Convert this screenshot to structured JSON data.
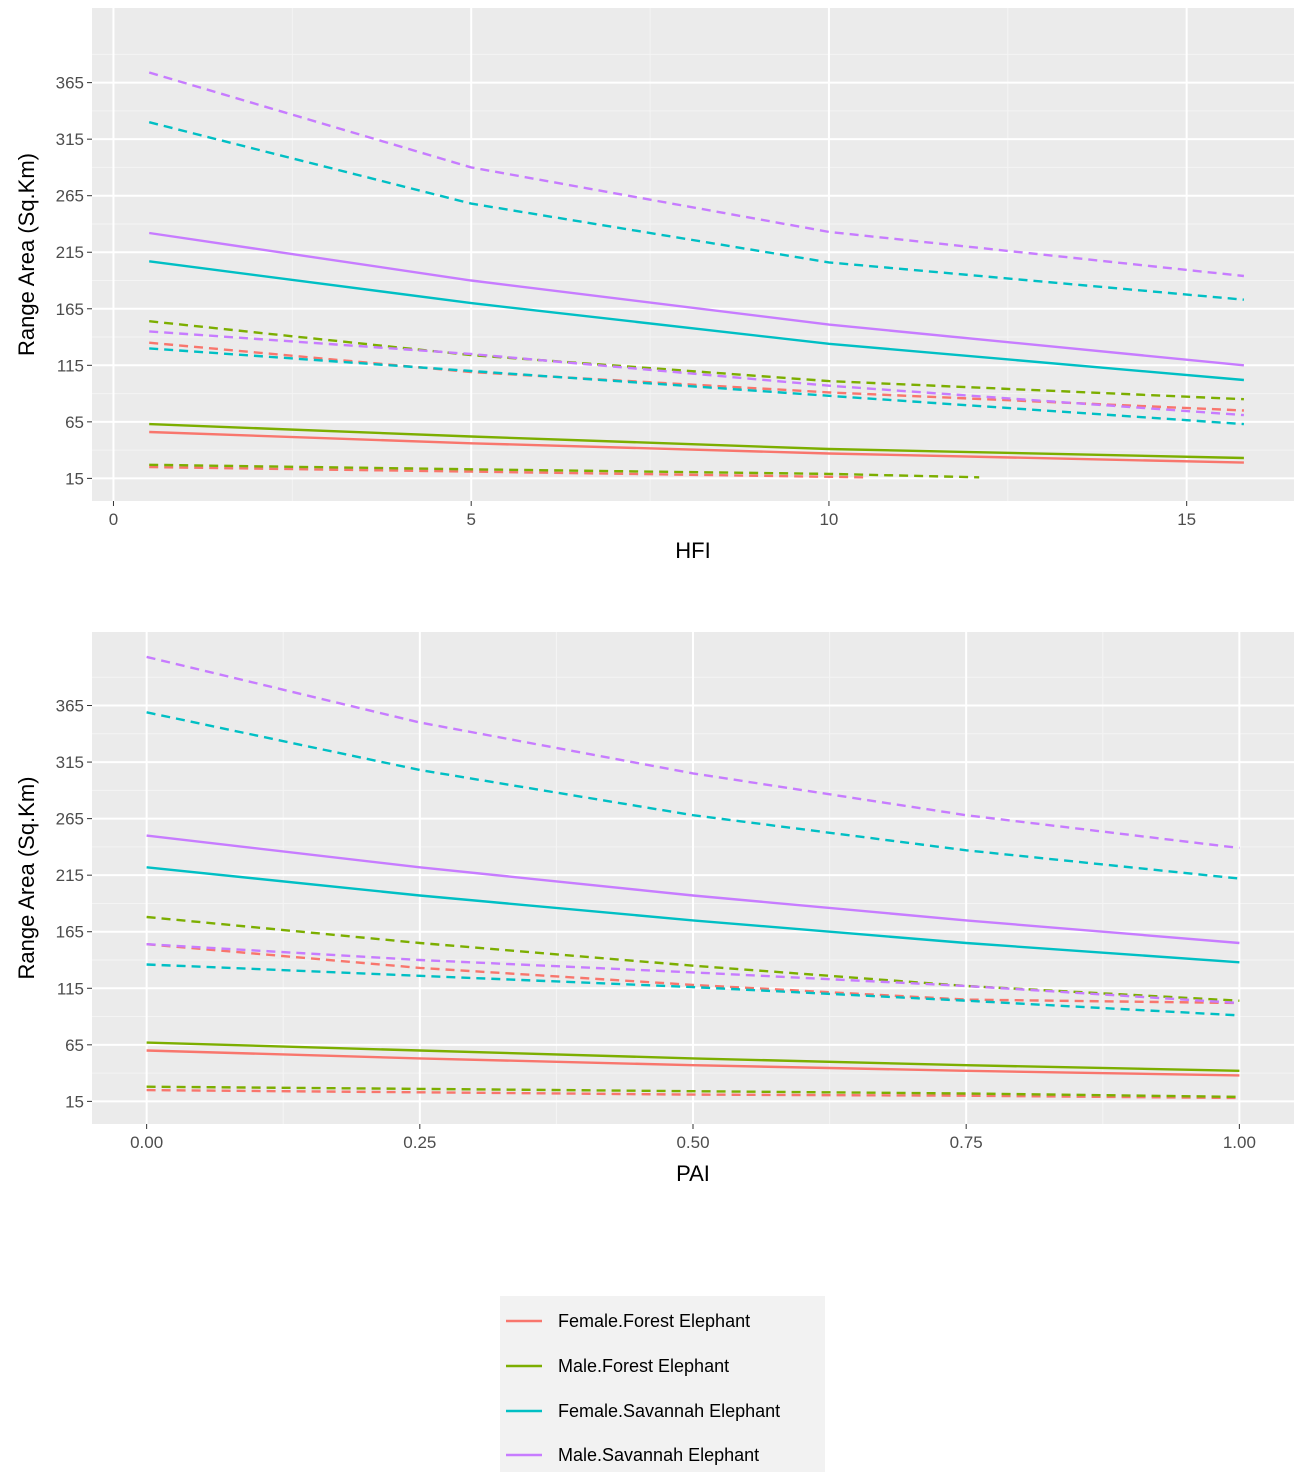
{
  "colors": {
    "panel_bg": "#EBEBEB",
    "grid_major": "#FFFFFF",
    "grid_minor": "#F4F4F4",
    "Female.Forest Elephant": "#F8766D",
    "Male.Forest Elephant": "#7CAE00",
    "Female.Savannah Elephant": "#00BFC4",
    "Male.Savannah Elephant": "#C77CFF"
  },
  "legend": {
    "items": [
      {
        "label": "Female.Forest Elephant",
        "color": "#F8766D"
      },
      {
        "label": "Male.Forest Elephant",
        "color": "#7CAE00"
      },
      {
        "label": "Female.Savannah Elephant",
        "color": "#00BFC4"
      },
      {
        "label": "Male.Savannah Elephant",
        "color": "#C77CFF"
      }
    ]
  },
  "chart_data": [
    {
      "type": "line",
      "xlabel": "HFI",
      "ylabel": "Range Area (Sq.Km)",
      "xlim": [
        -0.3,
        16.5
      ],
      "ylim": [
        -5,
        431
      ],
      "x_ticks": [
        0,
        5,
        10,
        15
      ],
      "x_tick_labels": [
        "0",
        "5",
        "10",
        "15"
      ],
      "y_ticks": [
        15,
        65,
        115,
        165,
        215,
        265,
        315,
        365
      ],
      "y_tick_labels": [
        "15",
        "65",
        "115",
        "165",
        "215",
        "265",
        "315",
        "365"
      ],
      "grid": true,
      "series": [
        {
          "name": "Female.Forest Elephant",
          "line": "solid",
          "x": [
            0.5,
            5,
            10,
            15.8
          ],
          "y": [
            56,
            46,
            37,
            29
          ]
        },
        {
          "name": "Male.Forest Elephant",
          "line": "solid",
          "x": [
            0.5,
            5,
            10,
            15.8
          ],
          "y": [
            63,
            52,
            41,
            33
          ]
        },
        {
          "name": "Female.Savannah Elephant",
          "line": "solid",
          "x": [
            0.5,
            5,
            10,
            15.8
          ],
          "y": [
            207,
            170,
            134,
            102
          ]
        },
        {
          "name": "Male.Savannah Elephant",
          "line": "solid",
          "x": [
            0.5,
            5,
            10,
            15.8
          ],
          "y": [
            232,
            190,
            151,
            115
          ]
        },
        {
          "name": "Female.Forest Elephant",
          "line": "dashed",
          "x": [
            0.5,
            5,
            10,
            15.8
          ],
          "y": [
            135,
            109,
            91,
            75
          ]
        },
        {
          "name": "Female.Forest Elephant",
          "line": "dashed",
          "x": [
            0.5,
            5,
            10.5
          ],
          "y": [
            25,
            21,
            16
          ]
        },
        {
          "name": "Male.Forest Elephant",
          "line": "dashed",
          "x": [
            0.5,
            5,
            10,
            15.8
          ],
          "y": [
            154,
            124,
            101,
            85
          ]
        },
        {
          "name": "Male.Forest Elephant",
          "line": "dashed",
          "x": [
            0.5,
            5,
            10,
            12.1
          ],
          "y": [
            27,
            23,
            19,
            16
          ]
        },
        {
          "name": "Female.Savannah Elephant",
          "line": "dashed",
          "x": [
            0.5,
            5,
            10,
            15.8
          ],
          "y": [
            330,
            258,
            206,
            173
          ]
        },
        {
          "name": "Female.Savannah Elephant",
          "line": "dashed",
          "x": [
            0.5,
            5,
            10,
            15.8
          ],
          "y": [
            130,
            110,
            88,
            63
          ]
        },
        {
          "name": "Male.Savannah Elephant",
          "line": "dashed",
          "x": [
            0.5,
            5,
            10,
            15.8
          ],
          "y": [
            374,
            290,
            233,
            194
          ]
        },
        {
          "name": "Male.Savannah Elephant",
          "line": "dashed",
          "x": [
            0.5,
            5,
            10,
            15.8
          ],
          "y": [
            145,
            125,
            97,
            71
          ]
        }
      ]
    },
    {
      "type": "line",
      "xlabel": "PAI",
      "ylabel": "Range Area (Sq.Km)",
      "xlim": [
        -0.05,
        1.05
      ],
      "ylim": [
        -5,
        430
      ],
      "x_ticks": [
        0,
        0.25,
        0.5,
        0.75,
        1.0
      ],
      "x_tick_labels": [
        "0.00",
        "0.25",
        "0.50",
        "0.75",
        "1.00"
      ],
      "y_ticks": [
        15,
        65,
        115,
        165,
        215,
        265,
        315,
        365
      ],
      "y_tick_labels": [
        "15",
        "65",
        "115",
        "165",
        "215",
        "265",
        "315",
        "365"
      ],
      "grid": true,
      "series": [
        {
          "name": "Female.Forest Elephant",
          "line": "solid",
          "x": [
            0,
            0.25,
            0.5,
            0.75,
            1.0
          ],
          "y": [
            60,
            53,
            47,
            42,
            38
          ]
        },
        {
          "name": "Male.Forest Elephant",
          "line": "solid",
          "x": [
            0,
            0.25,
            0.5,
            0.75,
            1.0
          ],
          "y": [
            67,
            60,
            53,
            47,
            42
          ]
        },
        {
          "name": "Female.Savannah Elephant",
          "line": "solid",
          "x": [
            0,
            0.25,
            0.5,
            0.75,
            1.0
          ],
          "y": [
            222,
            197,
            175,
            155,
            138
          ]
        },
        {
          "name": "Male.Savannah Elephant",
          "line": "solid",
          "x": [
            0,
            0.25,
            0.5,
            0.75,
            1.0
          ],
          "y": [
            250,
            222,
            197,
            175,
            155
          ]
        },
        {
          "name": "Female.Forest Elephant",
          "line": "dashed",
          "x": [
            0,
            0.25,
            0.5,
            0.75,
            1.0
          ],
          "y": [
            154,
            133,
            118,
            105,
            102
          ]
        },
        {
          "name": "Female.Forest Elephant",
          "line": "dashed",
          "x": [
            0,
            0.25,
            0.5,
            0.75,
            1.0
          ],
          "y": [
            25,
            23,
            21,
            20,
            18
          ]
        },
        {
          "name": "Male.Forest Elephant",
          "line": "dashed",
          "x": [
            0,
            0.25,
            0.5,
            0.75,
            1.0
          ],
          "y": [
            178,
            155,
            135,
            117,
            104
          ]
        },
        {
          "name": "Male.Forest Elephant",
          "line": "dashed",
          "x": [
            0,
            0.25,
            0.5,
            0.75,
            1.0
          ],
          "y": [
            28,
            26,
            24,
            22,
            19
          ]
        },
        {
          "name": "Female.Savannah Elephant",
          "line": "dashed",
          "x": [
            0,
            0.25,
            0.5,
            0.75,
            1.0
          ],
          "y": [
            359,
            308,
            268,
            237,
            212
          ]
        },
        {
          "name": "Female.Savannah Elephant",
          "line": "dashed",
          "x": [
            0,
            0.25,
            0.5,
            0.75,
            1.0
          ],
          "y": [
            136,
            126,
            116,
            104,
            91
          ]
        },
        {
          "name": "Male.Savannah Elephant",
          "line": "dashed",
          "x": [
            0,
            0.25,
            0.5,
            0.75,
            1.0
          ],
          "y": [
            408,
            350,
            305,
            268,
            239
          ]
        },
        {
          "name": "Male.Savannah Elephant",
          "line": "dashed",
          "x": [
            0,
            0.25,
            0.5,
            0.75,
            1.0
          ],
          "y": [
            154,
            140,
            129,
            117,
            102
          ]
        }
      ]
    }
  ]
}
